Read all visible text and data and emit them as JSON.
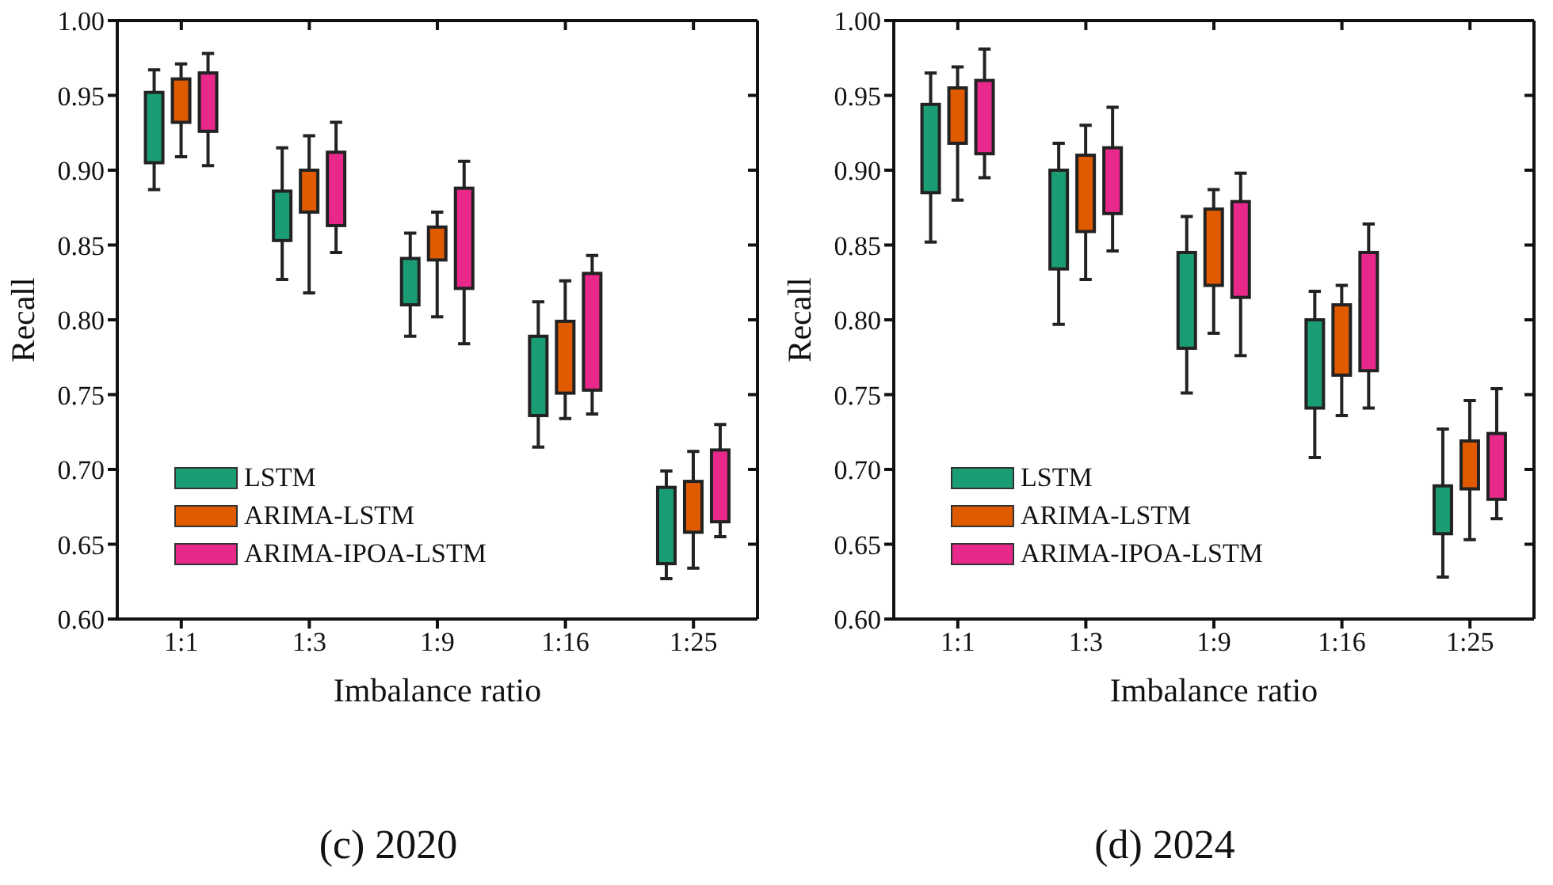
{
  "chart_data": [
    {
      "type": "box",
      "xlabel": "Imbalance ratio",
      "ylabel": "Recall",
      "annotations": [
        "(c) 2020"
      ],
      "categories": [
        "1:1",
        "1:3",
        "1:9",
        "1:16",
        "1:25"
      ],
      "ylim": [
        0.6,
        1.0
      ],
      "yticks": [
        {
          "value": 0.6,
          "label": "0.60"
        },
        {
          "value": 0.65,
          "label": "0.65"
        },
        {
          "value": 0.7,
          "label": "0.70"
        },
        {
          "value": 0.75,
          "label": "0.75"
        },
        {
          "value": 0.8,
          "label": "0.80"
        },
        {
          "value": 0.85,
          "label": "0.85"
        },
        {
          "value": 0.9,
          "label": "0.90"
        },
        {
          "value": 0.95,
          "label": "0.95"
        },
        {
          "value": 1.0,
          "label": "1.00"
        }
      ],
      "legend": "bottom left",
      "series": [
        {
          "name": "LSTM",
          "color": "#1a9c74",
          "boxes": [
            {
              "low": 0.887,
              "q1": 0.905,
              "q3": 0.952,
              "high": 0.967
            },
            {
              "low": 0.827,
              "q1": 0.853,
              "q3": 0.886,
              "high": 0.915
            },
            {
              "low": 0.789,
              "q1": 0.81,
              "q3": 0.841,
              "high": 0.858
            },
            {
              "low": 0.715,
              "q1": 0.736,
              "q3": 0.789,
              "high": 0.812
            },
            {
              "low": 0.627,
              "q1": 0.637,
              "q3": 0.688,
              "high": 0.699
            }
          ]
        },
        {
          "name": "ARIMA-LSTM",
          "color": "#e05a00",
          "boxes": [
            {
              "low": 0.909,
              "q1": 0.932,
              "q3": 0.961,
              "high": 0.971
            },
            {
              "low": 0.818,
              "q1": 0.872,
              "q3": 0.9,
              "high": 0.923
            },
            {
              "low": 0.802,
              "q1": 0.84,
              "q3": 0.862,
              "high": 0.872
            },
            {
              "low": 0.734,
              "q1": 0.751,
              "q3": 0.799,
              "high": 0.826
            },
            {
              "low": 0.634,
              "q1": 0.658,
              "q3": 0.692,
              "high": 0.712
            }
          ]
        },
        {
          "name": "ARIMA-IPOA-LSTM",
          "color": "#e8288a",
          "boxes": [
            {
              "low": 0.903,
              "q1": 0.926,
              "q3": 0.965,
              "high": 0.978
            },
            {
              "low": 0.845,
              "q1": 0.863,
              "q3": 0.912,
              "high": 0.932
            },
            {
              "low": 0.784,
              "q1": 0.821,
              "q3": 0.888,
              "high": 0.906
            },
            {
              "low": 0.737,
              "q1": 0.753,
              "q3": 0.831,
              "high": 0.843
            },
            {
              "low": 0.655,
              "q1": 0.665,
              "q3": 0.713,
              "high": 0.73
            }
          ]
        }
      ]
    },
    {
      "type": "box",
      "xlabel": "Imbalance ratio",
      "ylabel": "Recall",
      "annotations": [
        "(d) 2024"
      ],
      "categories": [
        "1:1",
        "1:3",
        "1:9",
        "1:16",
        "1:25"
      ],
      "ylim": [
        0.6,
        1.0
      ],
      "yticks": [
        {
          "value": 0.6,
          "label": "0.60"
        },
        {
          "value": 0.65,
          "label": "0.65"
        },
        {
          "value": 0.7,
          "label": "0.70"
        },
        {
          "value": 0.75,
          "label": "0.75"
        },
        {
          "value": 0.8,
          "label": "0.80"
        },
        {
          "value": 0.85,
          "label": "0.85"
        },
        {
          "value": 0.9,
          "label": "0.90"
        },
        {
          "value": 0.95,
          "label": "0.95"
        },
        {
          "value": 1.0,
          "label": "1.00"
        }
      ],
      "legend": "bottom left",
      "series": [
        {
          "name": "LSTM",
          "color": "#1a9c74",
          "boxes": [
            {
              "low": 0.852,
              "q1": 0.885,
              "q3": 0.944,
              "high": 0.965
            },
            {
              "low": 0.797,
              "q1": 0.834,
              "q3": 0.9,
              "high": 0.918
            },
            {
              "low": 0.751,
              "q1": 0.781,
              "q3": 0.845,
              "high": 0.869
            },
            {
              "low": 0.708,
              "q1": 0.741,
              "q3": 0.8,
              "high": 0.819
            },
            {
              "low": 0.628,
              "q1": 0.657,
              "q3": 0.689,
              "high": 0.727
            }
          ]
        },
        {
          "name": "ARIMA-LSTM",
          "color": "#e05a00",
          "boxes": [
            {
              "low": 0.88,
              "q1": 0.918,
              "q3": 0.955,
              "high": 0.969
            },
            {
              "low": 0.827,
              "q1": 0.859,
              "q3": 0.91,
              "high": 0.93
            },
            {
              "low": 0.791,
              "q1": 0.823,
              "q3": 0.874,
              "high": 0.887
            },
            {
              "low": 0.736,
              "q1": 0.763,
              "q3": 0.81,
              "high": 0.823
            },
            {
              "low": 0.653,
              "q1": 0.687,
              "q3": 0.719,
              "high": 0.746
            }
          ]
        },
        {
          "name": "ARIMA-IPOA-LSTM",
          "color": "#e8288a",
          "boxes": [
            {
              "low": 0.895,
              "q1": 0.911,
              "q3": 0.96,
              "high": 0.981
            },
            {
              "low": 0.846,
              "q1": 0.871,
              "q3": 0.915,
              "high": 0.942
            },
            {
              "low": 0.776,
              "q1": 0.815,
              "q3": 0.879,
              "high": 0.898
            },
            {
              "low": 0.741,
              "q1": 0.766,
              "q3": 0.845,
              "high": 0.864
            },
            {
              "low": 0.667,
              "q1": 0.68,
              "q3": 0.724,
              "high": 0.754
            }
          ]
        }
      ]
    }
  ]
}
